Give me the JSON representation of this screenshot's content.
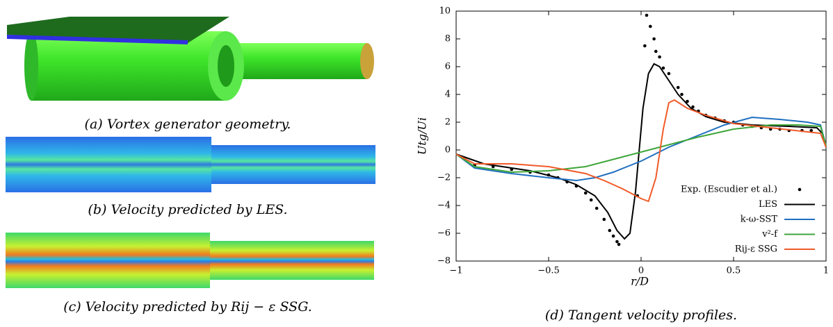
{
  "figure": {
    "panels": [
      {
        "caption": "(a) Vortex generator geometry."
      },
      {
        "caption": "(b) Velocity predicted by LES."
      },
      {
        "caption": "(c) Velocity predicted by Rij − ε SSG."
      },
      {
        "caption": "(d) Tangent velocity profiles."
      }
    ]
  },
  "chart_data": {
    "type": "line",
    "xlabel": "r/D",
    "ylabel": "Utg/Ui",
    "xlim": [
      -1,
      1
    ],
    "ylim": [
      -8,
      10
    ],
    "xticks": [
      {
        "value": -1,
        "label": "−1"
      },
      {
        "value": -0.5,
        "label": "−0.5"
      },
      0,
      0.5,
      1
    ],
    "yticks": [
      {
        "value": -8,
        "label": "−8"
      },
      {
        "value": -6,
        "label": "−6"
      },
      {
        "value": -4,
        "label": "−4"
      },
      {
        "value": -2,
        "label": "−2"
      },
      0,
      2,
      4,
      6,
      8,
      10
    ],
    "legend": "lower right",
    "series": [
      {
        "name": "Exp. (Escudier et al.)",
        "type": "scatter",
        "color": "#000000",
        "x": [
          -0.9,
          -0.8,
          -0.7,
          -0.6,
          -0.5,
          -0.45,
          -0.4,
          -0.35,
          -0.3,
          -0.27,
          -0.24,
          -0.2,
          -0.17,
          -0.15,
          -0.13,
          -0.12,
          -0.02,
          0.02,
          0.03,
          0.05,
          0.07,
          0.08,
          0.1,
          0.12,
          0.15,
          0.2,
          0.22,
          0.25,
          0.28,
          0.31,
          0.35,
          0.4,
          0.45,
          0.5,
          0.55,
          0.6,
          0.65,
          0.7,
          0.75,
          0.8,
          0.87,
          0.92
        ],
        "values": [
          -1.1,
          -1.2,
          -1.4,
          -1.6,
          -1.8,
          -2.0,
          -2.3,
          -2.6,
          -3.1,
          -3.6,
          -4.2,
          -5.0,
          -5.8,
          -6.2,
          -6.6,
          -6.8,
          -3.3,
          7.5,
          9.7,
          8.9,
          8.0,
          7.1,
          6.7,
          5.9,
          5.5,
          4.5,
          4.0,
          3.5,
          3.1,
          2.8,
          2.5,
          2.3,
          2.1,
          2.0,
          1.8,
          1.7,
          1.6,
          1.5,
          1.5,
          1.4,
          1.4,
          1.4
        ]
      },
      {
        "name": "LES",
        "type": "line",
        "color": "#000000",
        "x": [
          -1,
          -0.85,
          -0.6,
          -0.45,
          -0.35,
          -0.25,
          -0.18,
          -0.13,
          -0.09,
          -0.06,
          -0.03,
          -0.01,
          0.01,
          0.04,
          0.07,
          0.1,
          0.15,
          0.2,
          0.27,
          0.35,
          0.45,
          0.6,
          0.8,
          0.95,
          0.98,
          1
        ],
        "values": [
          -0.3,
          -1.0,
          -1.5,
          -2.0,
          -2.5,
          -3.3,
          -4.5,
          -5.8,
          -6.4,
          -6.0,
          -3.0,
          0,
          3.0,
          5.5,
          6.2,
          6.0,
          5.0,
          4.0,
          3.0,
          2.4,
          2.0,
          1.8,
          1.7,
          1.6,
          1.2,
          0.2
        ]
      },
      {
        "name": "k-ω-SST",
        "type": "line",
        "color": "#1f6fc0",
        "x": [
          -1,
          -0.9,
          -0.7,
          -0.5,
          -0.35,
          -0.25,
          -0.15,
          0,
          0.15,
          0.3,
          0.45,
          0.6,
          0.75,
          0.9,
          0.97,
          1
        ],
        "values": [
          -0.3,
          -1.3,
          -1.7,
          -2.0,
          -2.2,
          -2.0,
          -1.6,
          -0.8,
          0.2,
          1.0,
          1.8,
          2.35,
          2.2,
          2.0,
          1.8,
          0.3
        ]
      },
      {
        "name": "v²-f",
        "type": "line",
        "color": "#3ea63a",
        "x": [
          -1,
          -0.9,
          -0.7,
          -0.5,
          -0.3,
          -0.1,
          0.1,
          0.3,
          0.5,
          0.7,
          0.85,
          0.97,
          1
        ],
        "values": [
          -0.3,
          -1.2,
          -1.6,
          -1.5,
          -1.2,
          -0.5,
          0.2,
          0.9,
          1.5,
          1.8,
          1.8,
          1.7,
          0.3
        ]
      },
      {
        "name": "Rij-ε SSG",
        "type": "line",
        "color": "#f05a28",
        "x": [
          -1,
          -0.9,
          -0.7,
          -0.5,
          -0.3,
          -0.2,
          -0.1,
          0,
          0.04,
          0.08,
          0.12,
          0.15,
          0.18,
          0.25,
          0.35,
          0.5,
          0.7,
          0.9,
          0.97,
          1
        ],
        "values": [
          -0.3,
          -1.0,
          -1.0,
          -1.2,
          -1.7,
          -2.2,
          -2.8,
          -3.5,
          -3.7,
          -2.0,
          1.5,
          3.4,
          3.6,
          3.0,
          2.5,
          1.9,
          1.6,
          1.3,
          1.2,
          0.2
        ]
      }
    ]
  }
}
